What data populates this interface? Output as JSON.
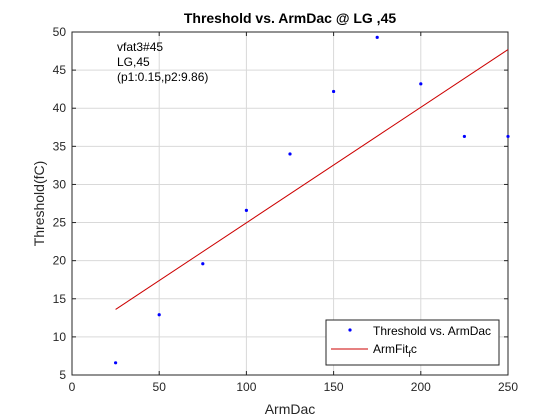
{
  "chart_data": {
    "type": "scatter",
    "title": "Threshold vs. ArmDac @ LG ,45",
    "xlabel": "ArmDac",
    "ylabel": "Threshold(fC)",
    "xlim": [
      0,
      250
    ],
    "ylim": [
      5,
      50
    ],
    "xticks": [
      0,
      50,
      100,
      150,
      200,
      250
    ],
    "yticks": [
      5,
      10,
      15,
      20,
      25,
      30,
      35,
      40,
      45,
      50
    ],
    "grid": true,
    "legend_position": "bottom-right",
    "annotations": [
      "vfat3#45",
      "LG,45",
      "(p1:0.15,p2:9.86)"
    ],
    "series": [
      {
        "name": "Threshold vs. ArmDac",
        "kind": "scatter",
        "color": "#0000ff",
        "x": [
          25,
          50,
          75,
          100,
          125,
          150,
          175,
          200,
          225,
          250
        ],
        "y": [
          6.6,
          12.9,
          19.6,
          26.6,
          34.0,
          42.2,
          49.3,
          43.2,
          36.3,
          36.3
        ]
      },
      {
        "name": "ArmFit",
        "name_subscript": "f",
        "name_suffix": "c",
        "kind": "line",
        "color": "#cc0000",
        "x": [
          25,
          250
        ],
        "y": [
          13.6,
          47.7
        ]
      }
    ]
  }
}
